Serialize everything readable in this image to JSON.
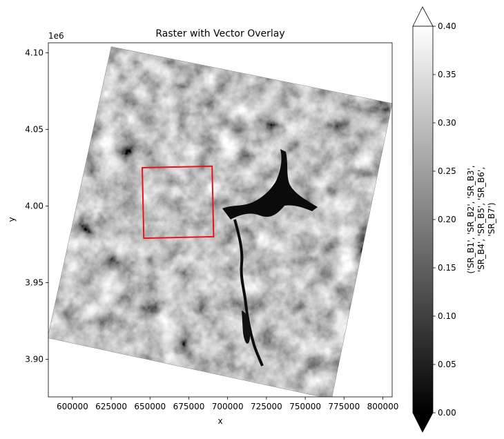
{
  "chart_data": {
    "type": "heatmap",
    "title": "Raster with Vector Overlay",
    "xlabel": "x",
    "ylabel": "y",
    "y_offset_label": "1e6",
    "xlim": [
      584500,
      806000
    ],
    "ylim": [
      3875500,
      4106500
    ],
    "x_ticks": [
      {
        "value": 600000,
        "label": "600000"
      },
      {
        "value": 625000,
        "label": "625000"
      },
      {
        "value": 650000,
        "label": "650000"
      },
      {
        "value": 675000,
        "label": "675000"
      },
      {
        "value": 700000,
        "label": "700000"
      },
      {
        "value": 725000,
        "label": "725000"
      },
      {
        "value": 750000,
        "label": "750000"
      },
      {
        "value": 775000,
        "label": "775000"
      },
      {
        "value": 800000,
        "label": "800000"
      }
    ],
    "y_ticks": [
      {
        "value": 3900000,
        "label": "3.90"
      },
      {
        "value": 3950000,
        "label": "3.95"
      },
      {
        "value": 4000000,
        "label": "4.00"
      },
      {
        "value": 4050000,
        "label": "4.05"
      },
      {
        "value": 4100000,
        "label": "4.10"
      }
    ],
    "raster_footprint": [
      [
        625000,
        4104000
      ],
      [
        806000,
        4067000
      ],
      [
        767000,
        3874000
      ],
      [
        584000,
        3914000
      ]
    ],
    "vector_overlay": {
      "color": "#e8141c",
      "polygon": [
        [
          645000,
          4025000
        ],
        [
          690000,
          4026000
        ],
        [
          691000,
          3980000
        ],
        [
          646000,
          3979000
        ]
      ]
    },
    "colorbar": {
      "label": "('SR_B1', 'SR_B2', 'SR_B3', 'SR_B4', 'SR_B5', 'SR_B6', 'SR_B7')",
      "label_lines": [
        "('SR_B1', 'SR_B2', 'SR_B3',",
        "'SR_B4', 'SR_B5', 'SR_B6',",
        "'SR_B7')"
      ],
      "range": [
        0.0,
        0.4
      ],
      "ticks": [
        {
          "value": 0.0,
          "label": "0.00"
        },
        {
          "value": 0.05,
          "label": "0.05"
        },
        {
          "value": 0.1,
          "label": "0.10"
        },
        {
          "value": 0.15,
          "label": "0.15"
        },
        {
          "value": 0.2,
          "label": "0.20"
        },
        {
          "value": 0.25,
          "label": "0.25"
        },
        {
          "value": 0.3,
          "label": "0.30"
        },
        {
          "value": 0.35,
          "label": "0.35"
        },
        {
          "value": 0.4,
          "label": "0.40"
        }
      ],
      "extend": "both",
      "colormap": "gray"
    }
  }
}
